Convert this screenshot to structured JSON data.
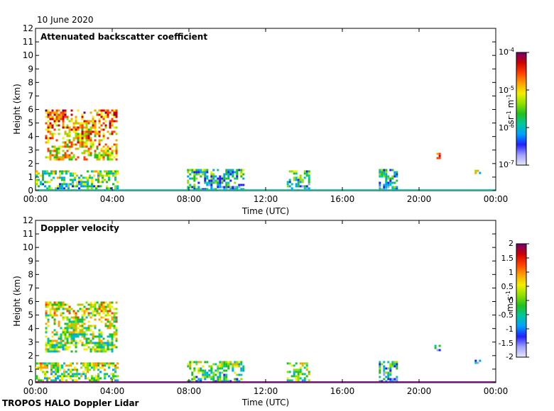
{
  "date_label": "10 June 2020",
  "footer": "TROPOS HALO Doppler Lidar",
  "colors": {
    "spectrum": [
      "#e8e8f8",
      "#a0a0ff",
      "#2020ff",
      "#00a0ff",
      "#00c8a0",
      "#20c020",
      "#90e000",
      "#f0f000",
      "#ffa000",
      "#ff4000",
      "#d00000",
      "#700070"
    ]
  },
  "chart_data": [
    {
      "type": "heatmap",
      "title": "Attenuated backscatter coefficient",
      "xlabel": "Time (UTC)",
      "ylabel": "Height (km)",
      "xticks": [
        "00:00",
        "04:00",
        "08:00",
        "12:00",
        "16:00",
        "20:00",
        "00:00"
      ],
      "yticks": [
        "0",
        "1",
        "2",
        "3",
        "4",
        "5",
        "6",
        "7",
        "8",
        "9",
        "10",
        "11",
        "12"
      ],
      "xlim_hours": [
        0,
        24
      ],
      "ylim_km": [
        0,
        12
      ],
      "colorbar": {
        "label_html": "sr<tspan baseline-shift='super' font-size='8'>-1</tspan> m<tspan baseline-shift='super' font-size='8'>-1</tspan>",
        "unit_plain": "sr-1 m-1",
        "scale": "log",
        "range": [
          1e-07,
          0.0001
        ],
        "ticks": [
          {
            "base": "10",
            "exp": "-4"
          },
          {
            "base": "10",
            "exp": "-5"
          },
          {
            "base": "10",
            "exp": "-6"
          },
          {
            "base": "10",
            "exp": "-7"
          }
        ]
      },
      "features": [
        {
          "name": "mid-level cloud",
          "t_start": 0.5,
          "t_end": 4.2,
          "h_min": 2.3,
          "h_max": 6.0,
          "level": 0.7
        },
        {
          "name": "boundary layer morning",
          "t_start": 0.0,
          "t_end": 4.3,
          "h_min": 0.0,
          "h_max": 1.5,
          "level": 0.45
        },
        {
          "name": "aerosol 08-11",
          "t_start": 7.9,
          "t_end": 10.9,
          "h_min": 0.0,
          "h_max": 1.6,
          "level": 0.35
        },
        {
          "name": "aerosol 13-14",
          "t_start": 13.1,
          "t_end": 14.3,
          "h_min": 0.0,
          "h_max": 1.5,
          "level": 0.35
        },
        {
          "name": "aerosol 18",
          "t_start": 17.9,
          "t_end": 18.9,
          "h_min": 0.0,
          "h_max": 1.6,
          "level": 0.35
        },
        {
          "name": "cloud ~21h",
          "t_start": 20.8,
          "t_end": 21.1,
          "h_min": 2.4,
          "h_max": 2.8,
          "level": 0.7
        },
        {
          "name": "cloud ~23h",
          "t_start": 22.9,
          "t_end": 23.2,
          "h_min": 1.3,
          "h_max": 1.7,
          "level": 0.55
        }
      ]
    },
    {
      "type": "heatmap",
      "title": "Doppler velocity",
      "xlabel": "Time (UTC)",
      "ylabel": "Height (km)",
      "xticks": [
        "00:00",
        "04:00",
        "08:00",
        "12:00",
        "16:00",
        "20:00",
        "00:00"
      ],
      "yticks": [
        "0",
        "1",
        "2",
        "3",
        "4",
        "5",
        "6",
        "7",
        "8",
        "9",
        "10",
        "11",
        "12"
      ],
      "xlim_hours": [
        0,
        24
      ],
      "ylim_km": [
        0,
        12
      ],
      "colorbar": {
        "label_html": "m s<tspan baseline-shift='super' font-size='8'>-1</tspan>",
        "unit_plain": "m s-1",
        "scale": "linear",
        "range": [
          -2,
          2
        ],
        "ticks": [
          {
            "base": "2",
            "exp": ""
          },
          {
            "base": "1.5",
            "exp": ""
          },
          {
            "base": "1",
            "exp": ""
          },
          {
            "base": "0.5",
            "exp": ""
          },
          {
            "base": "0",
            "exp": ""
          },
          {
            "base": "-0.5",
            "exp": ""
          },
          {
            "base": "-1",
            "exp": ""
          },
          {
            "base": "-1.5",
            "exp": ""
          },
          {
            "base": "-2",
            "exp": ""
          }
        ]
      },
      "features": [
        {
          "name": "mid-level cloud",
          "t_start": 0.5,
          "t_end": 4.2,
          "h_min": 2.3,
          "h_max": 6.0,
          "level": 0.55
        },
        {
          "name": "boundary layer morning",
          "t_start": 0.0,
          "t_end": 4.3,
          "h_min": 0.0,
          "h_max": 1.5,
          "level": 0.5
        },
        {
          "name": "aerosol 08-11",
          "t_start": 7.9,
          "t_end": 10.9,
          "h_min": 0.0,
          "h_max": 1.6,
          "level": 0.45
        },
        {
          "name": "aerosol 13-14",
          "t_start": 13.1,
          "t_end": 14.3,
          "h_min": 0.0,
          "h_max": 1.5,
          "level": 0.5
        },
        {
          "name": "aerosol 18",
          "t_start": 17.9,
          "t_end": 18.9,
          "h_min": 0.0,
          "h_max": 1.6,
          "level": 0.3
        },
        {
          "name": "cloud ~21h",
          "t_start": 20.8,
          "t_end": 21.1,
          "h_min": 2.4,
          "h_max": 2.8,
          "level": 0.2
        },
        {
          "name": "cloud ~23h",
          "t_start": 22.9,
          "t_end": 23.2,
          "h_min": 1.3,
          "h_max": 1.7,
          "level": 0.2
        }
      ]
    }
  ]
}
